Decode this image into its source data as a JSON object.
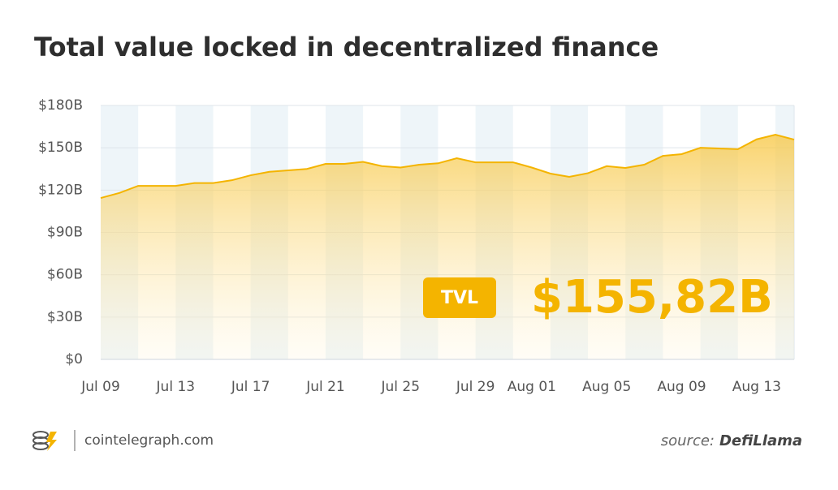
{
  "chart_data": {
    "type": "area",
    "title": "Total value locked in decentralized finance",
    "categories": [
      "Jul 09",
      null,
      null,
      null,
      "Jul 13",
      null,
      null,
      null,
      "Jul 17",
      null,
      null,
      null,
      "Jul 21",
      null,
      null,
      null,
      "Jul 25",
      null,
      null,
      null,
      "Jul 29",
      null,
      null,
      "Aug 01",
      null,
      null,
      null,
      "Aug 05",
      null,
      null,
      null,
      "Aug 09",
      null,
      null,
      null,
      "Aug 13",
      null,
      null
    ],
    "series": [
      {
        "name": "TVL",
        "color": "#f4b400",
        "values": [
          114.4,
          118,
          123,
          123,
          123,
          125,
          125,
          127,
          130.5,
          133,
          134,
          135,
          138.6,
          138.6,
          140,
          137,
          136,
          138,
          139,
          142.6,
          139.7,
          139.7,
          139.7,
          136,
          131.7,
          129.4,
          132,
          137,
          135.7,
          138,
          144.3,
          145.5,
          150,
          149.5,
          149,
          156,
          159.3,
          155.82
        ]
      }
    ],
    "ylim": [
      0,
      180
    ],
    "yticks": [
      {
        "value": 0,
        "label": "$0"
      },
      {
        "value": 30,
        "label": "$30B"
      },
      {
        "value": 60,
        "label": "$60B"
      },
      {
        "value": 90,
        "label": "$90B"
      },
      {
        "value": 120,
        "label": "$120B"
      },
      {
        "value": 150,
        "label": "$150B"
      },
      {
        "value": 180,
        "label": "$180B"
      }
    ],
    "grid": true,
    "annotation": {
      "badge": "TVL",
      "value": 155.82,
      "value_label": "$155,82B"
    },
    "footer": {
      "brand": "cointelegraph.com",
      "source_prefix": "source:",
      "source": "DefiLlama"
    }
  }
}
